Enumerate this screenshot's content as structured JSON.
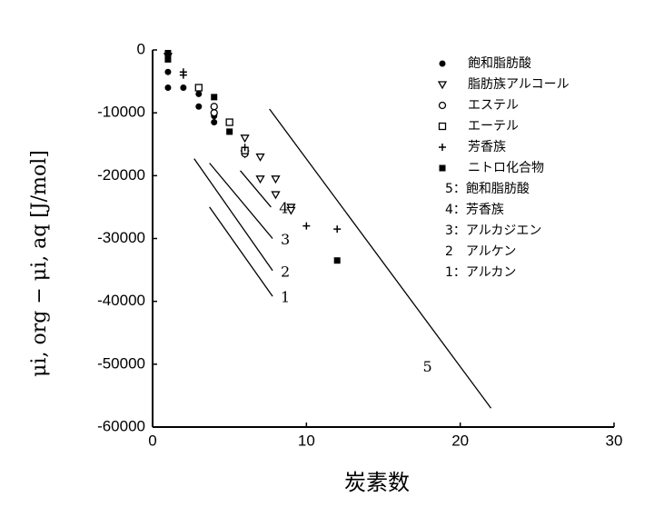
{
  "chart_data": {
    "type": "scatter",
    "x_label": "炭素数",
    "y_label": "μi, org − μi, aq [J/mol]",
    "xlim": [
      0,
      30
    ],
    "xticks": [
      0,
      10,
      20,
      30
    ],
    "ylim": [
      -60000,
      0
    ],
    "yticks": [
      0,
      -10000,
      -20000,
      -30000,
      -40000,
      -50000,
      -60000
    ],
    "series": [
      {
        "name": "飽和脂肪酸",
        "marker": "filled-circle",
        "color": "#000000",
        "x": [
          1,
          1,
          2,
          3,
          3,
          4,
          4
        ],
        "values": [
          -3500,
          -6000,
          -6000,
          -7000,
          -9000,
          -10500,
          -11500
        ]
      },
      {
        "name": "脂肪族アルコール",
        "marker": "triangle",
        "color": "#000000",
        "x": [
          1,
          6,
          6,
          7,
          7,
          8,
          8,
          9,
          9
        ],
        "values": [
          -1000,
          -14000,
          -16500,
          -17000,
          -20500,
          -20500,
          -23000,
          -25000,
          -25500
        ]
      },
      {
        "name": "エステル",
        "marker": "open-circle",
        "color": "#000000",
        "x": [
          4,
          4,
          6
        ],
        "values": [
          -9000,
          -10000,
          -16500
        ]
      },
      {
        "name": "エーテル",
        "marker": "open-square",
        "color": "#000000",
        "x": [
          3,
          5,
          6
        ],
        "values": [
          -6000,
          -11500,
          -16000
        ]
      },
      {
        "name": "芳香族",
        "marker": "plus",
        "color": "#000000",
        "x": [
          2,
          2,
          6,
          10,
          12
        ],
        "values": [
          -3500,
          -4000,
          -15500,
          -28000,
          -28500
        ]
      },
      {
        "name": "ニトロ化合物",
        "marker": "filled-square",
        "color": "#000000",
        "x": [
          1,
          1,
          4,
          5,
          12
        ],
        "values": [
          -500,
          -1500,
          -7500,
          -13000,
          -33500
        ]
      }
    ],
    "lines": [
      {
        "name": "5：飽和脂肪酸",
        "label": "5",
        "x": [
          7.6,
          22
        ],
        "values": [
          -9400,
          -57000
        ]
      },
      {
        "name": "4：芳香族",
        "label": "4",
        "x": [
          5.7,
          7.7
        ],
        "values": [
          -19200,
          -25000
        ]
      },
      {
        "name": "3：アルカジエン",
        "label": "3",
        "x": [
          3.7,
          7.8
        ],
        "values": [
          -18000,
          -30000
        ]
      },
      {
        "name": "2　アルケン",
        "label": "2",
        "x": [
          2.7,
          7.8
        ],
        "values": [
          -17300,
          -35100
        ]
      },
      {
        "name": "1：アルカン",
        "label": "1",
        "x": [
          3.7,
          7.8
        ],
        "values": [
          -25000,
          -39200
        ]
      }
    ]
  }
}
